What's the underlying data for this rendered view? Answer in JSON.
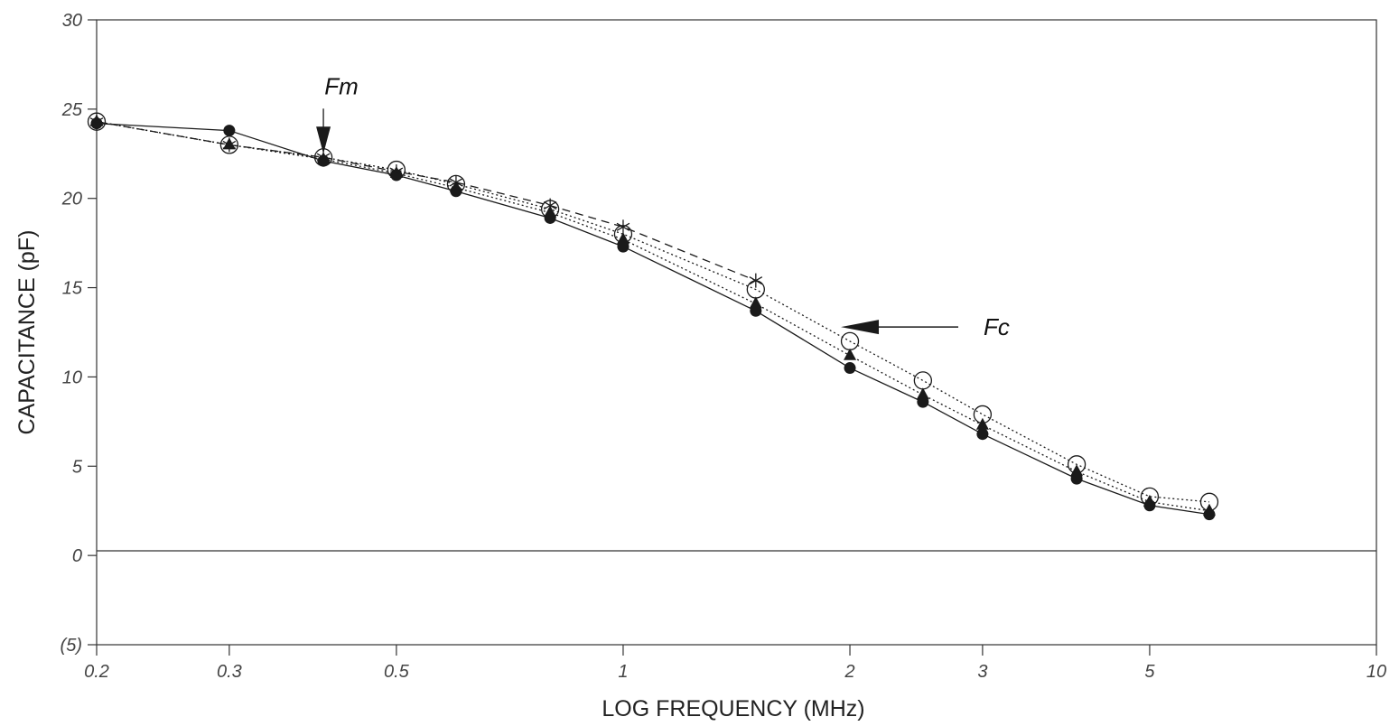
{
  "chart_data": {
    "type": "line",
    "title": "",
    "xlabel": "LOG FREQUENCY (MHz)",
    "ylabel": "CAPACITANCE (pF)",
    "x_scale": "log",
    "xlim": [
      0.2,
      10
    ],
    "ylim": [
      -5,
      30
    ],
    "x_ticks": [
      0.2,
      0.3,
      0.5,
      1,
      2,
      3,
      5,
      10
    ],
    "x_tick_labels": [
      "0.2",
      "0.3",
      "0.5",
      "1",
      "2",
      "3",
      "5",
      "10"
    ],
    "y_ticks": [
      -5,
      0,
      5,
      10,
      15,
      20,
      25,
      30
    ],
    "y_tick_labels": [
      "(5)",
      "0",
      "5",
      "10",
      "15",
      "20",
      "25",
      "30"
    ],
    "grid": false,
    "legend": "none",
    "series": [
      {
        "marker": "filled-circle",
        "line": "solid",
        "x": [
          0.2,
          0.3,
          0.4,
          0.5,
          0.6,
          0.8,
          1,
          1.5,
          2,
          2.5,
          3,
          4,
          5,
          6
        ],
        "values": [
          24.2,
          23.8,
          22.1,
          21.3,
          20.4,
          18.9,
          17.3,
          13.7,
          10.5,
          8.6,
          6.8,
          4.3,
          2.8,
          2.3
        ]
      },
      {
        "marker": "filled-triangle",
        "line": "dotted",
        "x": [
          0.2,
          0.3,
          0.4,
          0.5,
          0.6,
          0.8,
          1,
          1.5,
          2,
          2.5,
          3,
          4,
          5,
          6
        ],
        "values": [
          24.3,
          23.0,
          22.2,
          21.4,
          20.6,
          19.2,
          17.7,
          14.1,
          11.2,
          9.0,
          7.3,
          4.7,
          3.0,
          2.5
        ]
      },
      {
        "marker": "open-circle",
        "line": "dotted",
        "x": [
          0.2,
          0.3,
          0.4,
          0.5,
          0.6,
          0.8,
          1,
          1.5,
          2,
          2.5,
          3,
          4,
          5,
          6
        ],
        "values": [
          24.3,
          23.0,
          22.3,
          21.6,
          20.8,
          19.4,
          18.0,
          14.9,
          12.0,
          9.8,
          7.9,
          5.1,
          3.3,
          3.0
        ]
      },
      {
        "marker": "asterisk",
        "line": "dashed",
        "x": [
          0.2,
          0.3,
          0.4,
          0.5,
          0.6,
          0.8,
          1,
          1.5
        ],
        "values": [
          24.3,
          23.0,
          22.3,
          21.5,
          20.9,
          19.6,
          18.4,
          15.4
        ]
      }
    ],
    "annotations": [
      {
        "text": "Fm",
        "points_to_x": 0.4,
        "points_to_y": 22.5,
        "arrow": "down"
      },
      {
        "text": "Fc",
        "points_to_x": 2.0,
        "points_to_y": 12.8,
        "arrow": "left"
      }
    ],
    "colors": {
      "line": "#1a1a1a",
      "axis": "#333333",
      "text": "#444444"
    }
  }
}
